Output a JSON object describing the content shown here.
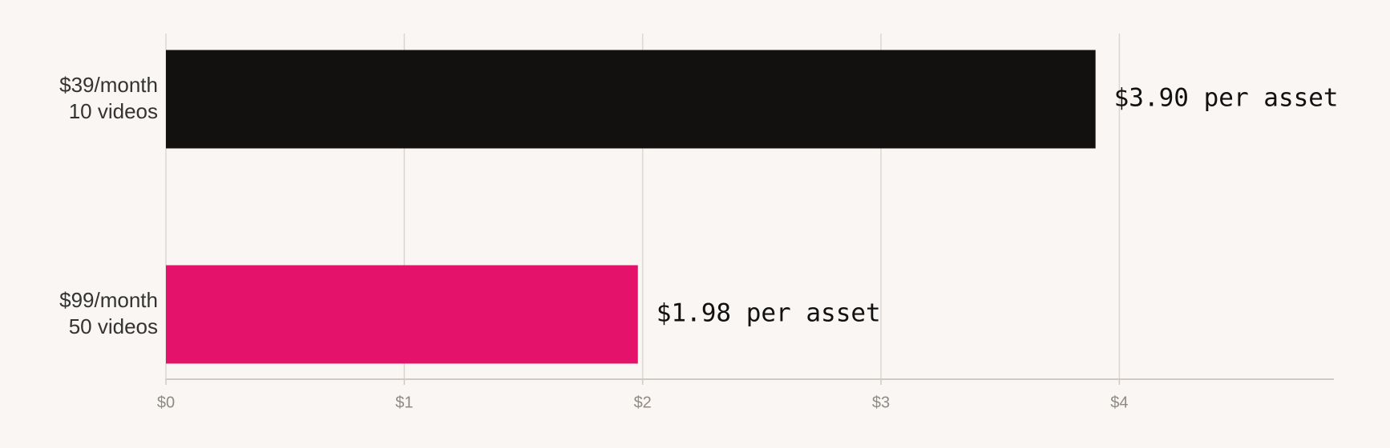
{
  "chart_data": {
    "type": "hbar",
    "categories": [
      [
        "$39/month",
        "10 videos"
      ],
      [
        "$99/month",
        "50 videos"
      ]
    ],
    "series": [
      {
        "values": [
          3.9,
          1.98
        ],
        "value_labels": [
          "$3.90 per asset",
          "$1.98 per asset"
        ],
        "colors": [
          "#121110",
          "#e5126b"
        ]
      }
    ],
    "xlim": [
      0,
      4.9
    ],
    "xticks": [
      {
        "value": 0,
        "label": "$0"
      },
      {
        "value": 1,
        "label": "$1"
      },
      {
        "value": 2,
        "label": "$2"
      },
      {
        "value": 3,
        "label": "$3"
      },
      {
        "value": 4,
        "label": "$4"
      }
    ],
    "grid": true
  }
}
